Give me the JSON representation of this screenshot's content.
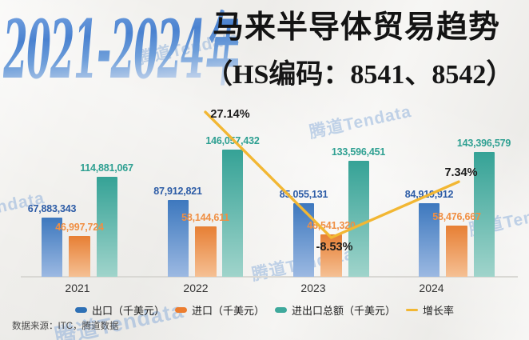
{
  "title": {
    "years": "2021-2024年",
    "main": "马来半导体贸易趋势",
    "sub": "（HS编码：8541、8542）"
  },
  "watermark": "腾道Tendata",
  "source_note": "数据来源：ITC，腾道数据",
  "legend": [
    {
      "label": "出口（千美元）",
      "color": "#2e70b5",
      "type": "bar"
    },
    {
      "label": "进口（千美元）",
      "color": "#ec7d2f",
      "type": "bar"
    },
    {
      "label": "进出口总额（千美元）",
      "color": "#3fa99c",
      "type": "bar"
    },
    {
      "label": "增长率",
      "color": "#f2b733",
      "type": "line"
    }
  ],
  "chart_data": {
    "type": "bar",
    "combo": "bar+line",
    "title": "2021-2024年马来半导体贸易趋势（HS编码：8541、8542）",
    "categories": [
      "2021",
      "2022",
      "2023",
      "2024"
    ],
    "series": [
      {
        "name": "出口（千美元）",
        "kind": "bar",
        "values": [
          67883343,
          87912821,
          85055131,
          84919912
        ],
        "labels": [
          "67,883,343",
          "87,912,821",
          "85,055,131",
          "84,919,912"
        ]
      },
      {
        "name": "进口（千美元）",
        "kind": "bar",
        "values": [
          46997724,
          58144611,
          48541320,
          58476667
        ],
        "labels": [
          "46,997,724",
          "58,144,611",
          "48,541,320",
          "58,476,667"
        ]
      },
      {
        "name": "进出口总额（千美元）",
        "kind": "bar",
        "values": [
          114881067,
          146057432,
          133596451,
          143396579
        ],
        "labels": [
          "114,881,067",
          "146,057,432",
          "133,596,451",
          "143,396,579"
        ]
      },
      {
        "name": "增长率",
        "kind": "line",
        "unit": "%",
        "values": [
          null,
          27.14,
          -8.53,
          7.34
        ],
        "labels": [
          null,
          "27.14%",
          "-8.53%",
          "7.34%"
        ]
      }
    ],
    "legend_position": "bottom",
    "grid": false,
    "y_axis_labels_visible": false,
    "colors": {
      "export_bar_top": "#3d78be",
      "export_bar_bottom": "#9cb9e2",
      "export_label": "#2d5ca6",
      "import_bar_top": "#e77f34",
      "import_bar_bottom": "#f5c094",
      "import_label": "#f08f43",
      "total_bar_top": "#35a296",
      "total_bar_bottom": "#a0d4cb",
      "total_label": "#2fa092",
      "growth_line": "#f2b733",
      "growth_label": "#1c1c1c"
    }
  }
}
